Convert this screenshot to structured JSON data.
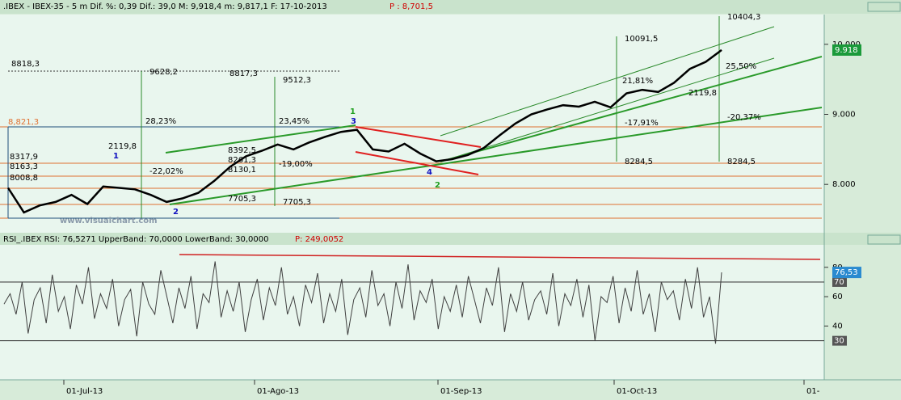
{
  "header": {
    "text": ".IBEX - IBEX-35 -  5 m Dif. %: 0,39 Dif.: 39,0 M: 9,918,4 m: 9,817,1 F: 17-10-2013",
    "p": "P : 8,701,5"
  },
  "chart_data": [
    {
      "type": "line",
      "color": "#000000",
      "values": [
        7950,
        7600,
        7700,
        7750,
        7850,
        7720,
        7970,
        7950,
        7930,
        7850,
        7750,
        7800,
        7880,
        8050,
        8250,
        8400,
        8480,
        8570,
        8500,
        8600,
        8680,
        8750,
        8780,
        8500,
        8470,
        8580,
        8440,
        8330,
        8360,
        8420,
        8520,
        8700,
        8870,
        9000,
        9070,
        9130,
        9110,
        9180,
        9100,
        9300,
        9350,
        9320,
        9450,
        9650,
        9750,
        9918
      ],
      "ylim": [
        7310,
        10425
      ],
      "yticks": [
        {
          "value": 8000,
          "label": "8.000"
        },
        {
          "value": 9000,
          "label": "9.000"
        },
        {
          "value": 10000,
          "label": "10.000"
        }
      ],
      "last_label": "9.918",
      "annotations": [
        "8818,3",
        "9628,2",
        "8817,3",
        "9512,3",
        "10091,5",
        "10404,3",
        "28,23%",
        "23,45%",
        "2119,8",
        "2119,8",
        "-22,02%",
        "-19,00%",
        "7705,3",
        "7705,3",
        "8392,5",
        "8261,3",
        "8130,1",
        "8284,5",
        "8284,5",
        "-17,91%",
        "-20,37%",
        "21,81%",
        "25,50%",
        "8,821,3",
        "8317,9",
        "8163,3",
        "8008,8",
        "www.visualchart.com",
        "1",
        "2",
        "3",
        "4",
        "1",
        "2"
      ]
    },
    {
      "type": "line",
      "color": "#404040",
      "header": "RSI_.IBEX RSI: 76,5271 UpperBand: 70,0000 LowerBand: 30,0000",
      "p": "P: 249,0052",
      "values": [
        55,
        62,
        48,
        70,
        35,
        58,
        66,
        42,
        75,
        50,
        60,
        38,
        68,
        55,
        80,
        45,
        62,
        52,
        72,
        40,
        58,
        65,
        33,
        70,
        55,
        48,
        78,
        60,
        42,
        66,
        52,
        74,
        38,
        62,
        56,
        84,
        46,
        64,
        50,
        70,
        36,
        58,
        72,
        44,
        66,
        54,
        80,
        48,
        60,
        40,
        68,
        56,
        76,
        42,
        62,
        50,
        72,
        34,
        58,
        66,
        46,
        78,
        54,
        62,
        40,
        70,
        52,
        82,
        44,
        64,
        56,
        72,
        38,
        60,
        50,
        68,
        46,
        74,
        58,
        42,
        66,
        54,
        80,
        36,
        62,
        50,
        70,
        44,
        58,
        64,
        48,
        76,
        40,
        62,
        54,
        72,
        46,
        68,
        30,
        60,
        56,
        74,
        42,
        66,
        50,
        78,
        48,
        62,
        36,
        70,
        58,
        64,
        44,
        72,
        52,
        80,
        46,
        60,
        28,
        76.53
      ],
      "value_label": "76,53",
      "ylim": [
        3.4,
        95.3
      ],
      "yticks": [
        40,
        60,
        80
      ],
      "bands": [
        70,
        30
      ],
      "xtick_labels": [
        "01-Jul-13",
        "01-Ago-13",
        "01-Sep-13",
        "01-Oct-13",
        "01-"
      ]
    }
  ]
}
